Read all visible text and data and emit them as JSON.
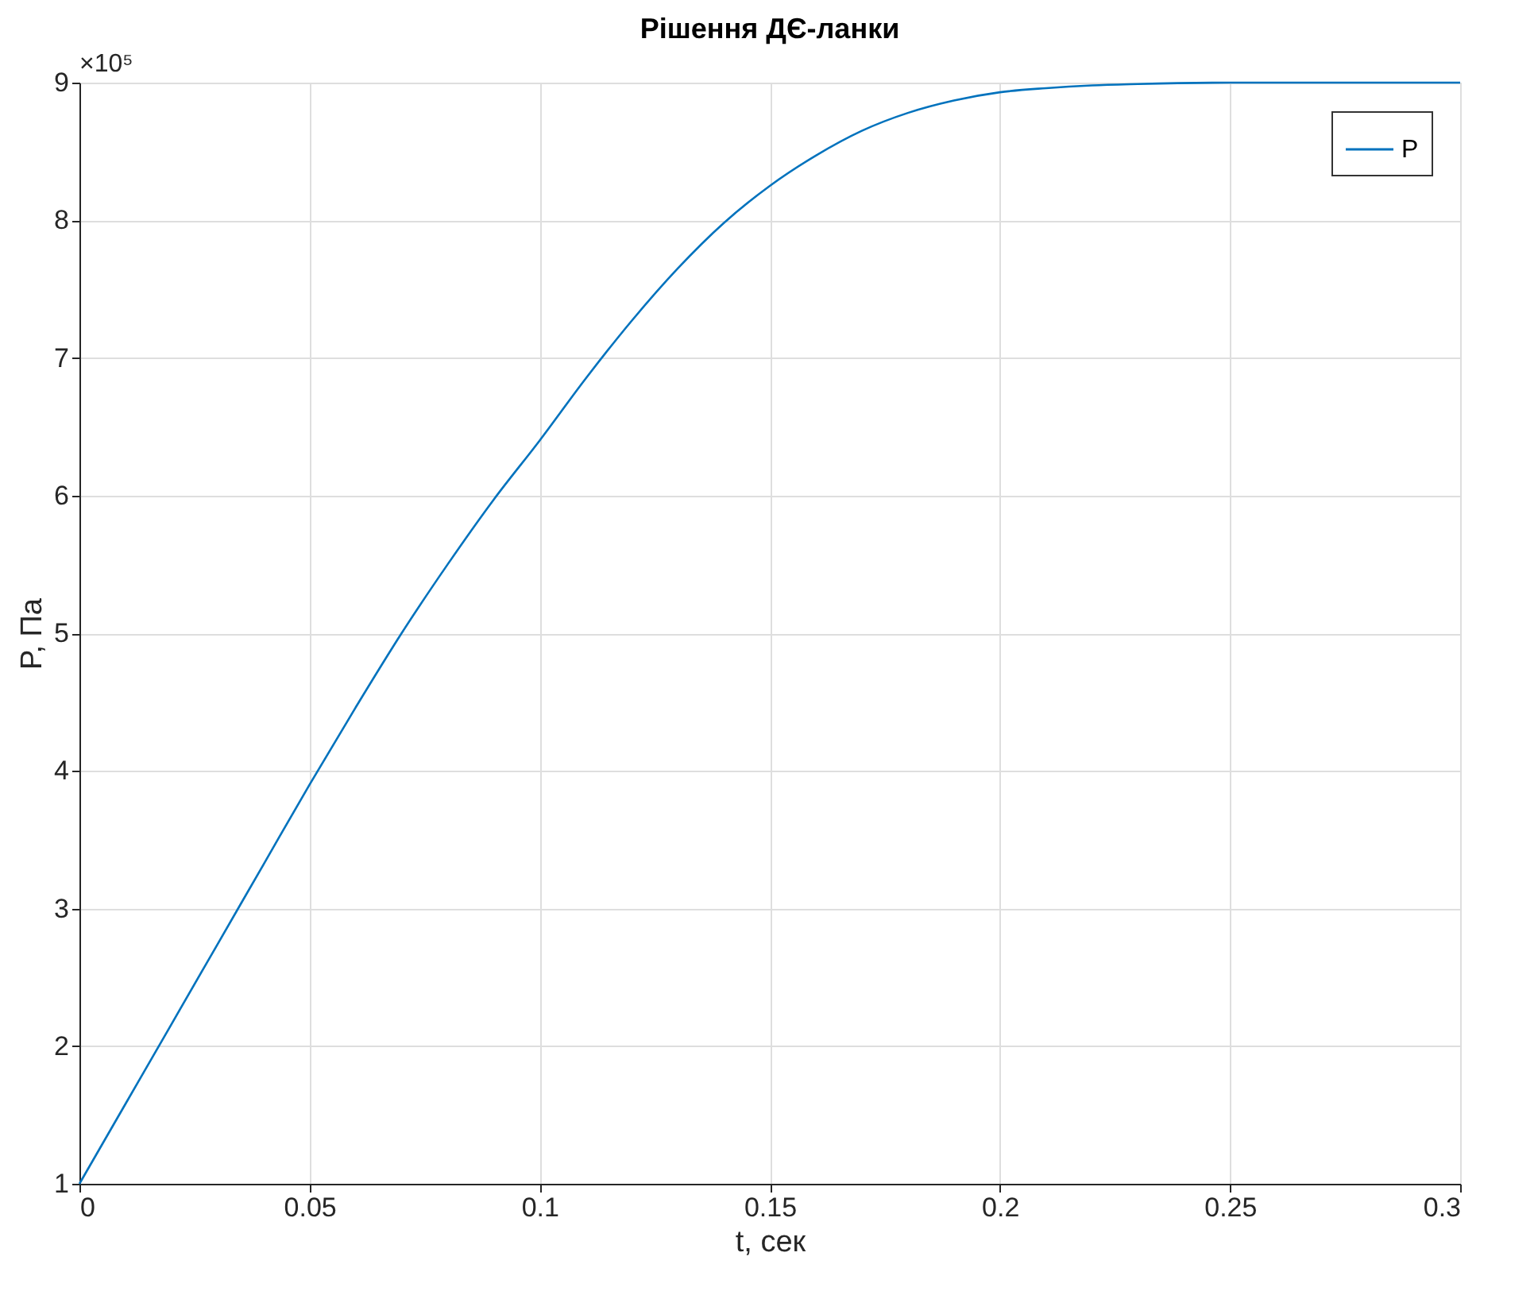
{
  "chart_data": {
    "type": "line",
    "title": "Рішення ДЄ-ланки",
    "xlabel": "t, сек",
    "ylabel": "P, Па",
    "annotations": [
      "×10⁵"
    ],
    "xlim": [
      0,
      0.3
    ],
    "xticks": [
      0,
      0.05,
      0.1,
      0.15,
      0.2,
      0.25,
      0.3
    ],
    "ylim": [
      1,
      9
    ],
    "yticks": [
      1,
      2,
      3,
      4,
      5,
      6,
      7,
      8,
      9
    ],
    "grid": true,
    "legend": "top right",
    "line_style": "solid",
    "marker": "none",
    "series": [
      {
        "name": "P",
        "color": "#0072bd",
        "x": [
          0,
          0.01,
          0.02,
          0.03,
          0.04,
          0.05,
          0.06,
          0.07,
          0.08,
          0.09,
          0.1,
          0.11,
          0.12,
          0.13,
          0.14,
          0.15,
          0.16,
          0.17,
          0.18,
          0.19,
          0.2,
          0.21,
          0.22,
          0.23,
          0.25,
          0.3
        ],
        "values": [
          1.0,
          1.58,
          2.16,
          2.74,
          3.32,
          3.9,
          4.46,
          5.0,
          5.5,
          5.97,
          6.4,
          6.85,
          7.27,
          7.65,
          7.98,
          8.25,
          8.47,
          8.65,
          8.78,
          8.87,
          8.93,
          8.96,
          8.98,
          8.99,
          9.0,
          9.0
        ]
      }
    ]
  }
}
